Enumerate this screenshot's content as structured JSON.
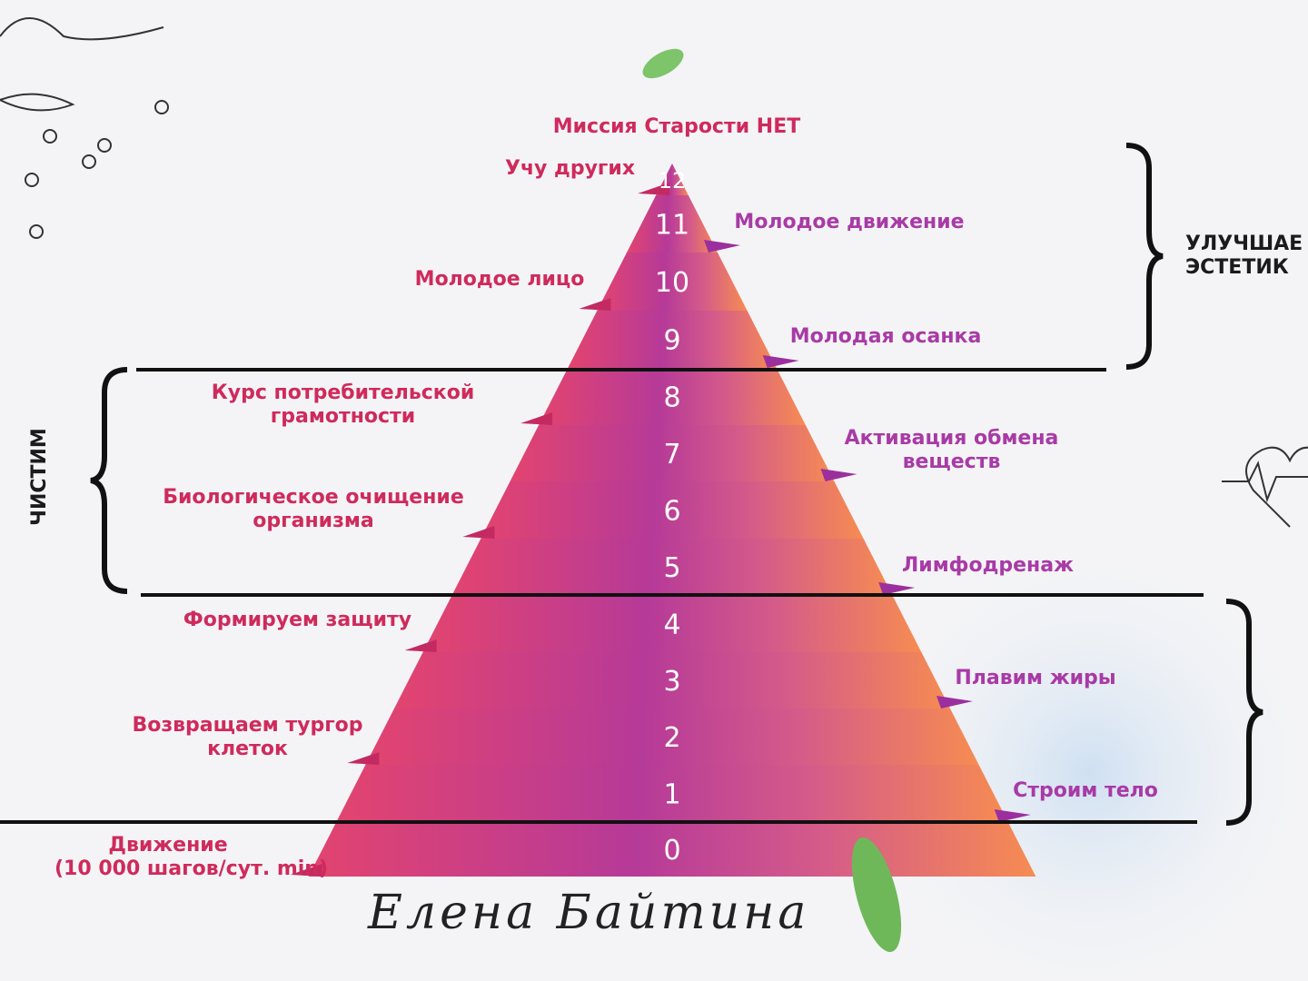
{
  "title": "Миссия Старости НЕТ",
  "levels": [
    {
      "n": "0",
      "label": "Движение\n(10 000 шагов/сут. min)",
      "side": "left"
    },
    {
      "n": "1",
      "label": "Строим тело",
      "side": "right"
    },
    {
      "n": "2",
      "label": "Возвращаем тургор\nклеток",
      "side": "left"
    },
    {
      "n": "3",
      "label": "Плавим жиры",
      "side": "right"
    },
    {
      "n": "4",
      "label": "Формируем защиту",
      "side": "left"
    },
    {
      "n": "5",
      "label": "Лимфодренаж",
      "side": "right"
    },
    {
      "n": "6",
      "label": "Биологическое очищение\nорганизма",
      "side": "left"
    },
    {
      "n": "7",
      "label": "Активация обмена\nвеществ",
      "side": "right"
    },
    {
      "n": "8",
      "label": "Курс потребительской\nграмотности",
      "side": "left"
    },
    {
      "n": "9",
      "label": "Молодая осанка",
      "side": "right"
    },
    {
      "n": "10",
      "label": "Молодое лицо",
      "side": "left"
    },
    {
      "n": "11",
      "label": "Молодое движение",
      "side": "right"
    },
    {
      "n": "12",
      "label": "Учу других",
      "side": "left"
    }
  ],
  "groups": {
    "top": "УЛУЧШАЕ\nЭСТЕТИК",
    "middle": "ЧИСТИМ"
  },
  "signature": "Елена Байтина",
  "colors": {
    "pink": "#e8507a",
    "purple": "#a636a8",
    "orange": "#f58a55",
    "left_label": "#cf2a5c",
    "right_label": "#a83aa6"
  }
}
